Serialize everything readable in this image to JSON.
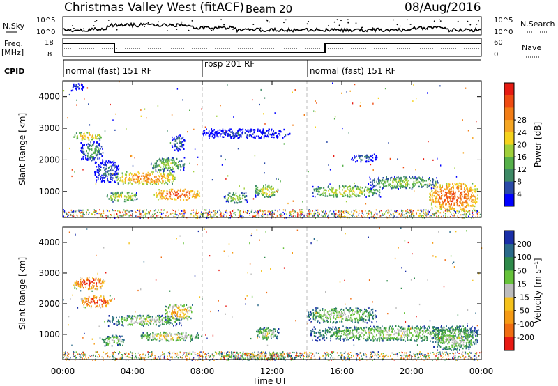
{
  "title": {
    "left": "Christmas Valley West (fitACF)",
    "beam": "Beam 20",
    "date": "08/Aug/2016"
  },
  "header": {
    "nsky_label": "N.Sky",
    "nsky_ticks": [
      "10^5",
      "10^0"
    ],
    "nsearch_label": "N.Search",
    "nsearch_ticks": [
      "10^5",
      "10^0"
    ],
    "freq_label": "Freq.",
    "freq_unit": "[MHz]",
    "freq_ticks": [
      "18",
      "8"
    ],
    "nave_label": "Nave",
    "nave_ticks": [
      "60",
      "0"
    ],
    "cpid_label": "CPID"
  },
  "cpid_segments": [
    {
      "label": "normal (fast) 151 RF",
      "start_h": 0
    },
    {
      "label": "rbsp 201 RF",
      "start_h": 8
    },
    {
      "label": "normal (fast) 151 RF",
      "start_h": 14
    }
  ],
  "chart_data": [
    {
      "type": "heatmap",
      "name": "power",
      "ylabel": "Slant Range [km]",
      "xlim_h": [
        0,
        24
      ],
      "ylim": [
        180,
        4500
      ],
      "yticks": [
        1000,
        2000,
        3000,
        4000
      ],
      "colorbar": {
        "label": "Power [dB]",
        "ticks": [
          "4",
          "8",
          "12",
          "16",
          "20",
          "24",
          "28"
        ],
        "colors": [
          "#0000ff",
          "#2a4aa8",
          "#3e8a66",
          "#56b04a",
          "#9fcf3a",
          "#f5d21c",
          "#f5a623",
          "#f27d16",
          "#ef4b12",
          "#e61b12"
        ]
      },
      "features": [
        {
          "t0": 0.4,
          "t1": 1.2,
          "r0": 4200,
          "r1": 4450,
          "level": 1
        },
        {
          "t0": 0.6,
          "t1": 2.2,
          "r0": 2650,
          "r1": 2900,
          "level": 6
        },
        {
          "t0": 1.0,
          "t1": 2.3,
          "r0": 2000,
          "r1": 2600,
          "level": 3
        },
        {
          "t0": 1.8,
          "t1": 3.2,
          "r0": 1300,
          "r1": 2000,
          "level": 2
        },
        {
          "t0": 2.5,
          "t1": 4.3,
          "r0": 700,
          "r1": 1000,
          "level": 5
        },
        {
          "t0": 3.0,
          "t1": 6.5,
          "r0": 1250,
          "r1": 1650,
          "level": 7
        },
        {
          "t0": 5.0,
          "t1": 7.0,
          "r0": 1650,
          "r1": 2100,
          "level": 4
        },
        {
          "t0": 5.2,
          "t1": 7.9,
          "r0": 750,
          "r1": 1100,
          "level": 8
        },
        {
          "t0": 6.2,
          "t1": 7.0,
          "r0": 2300,
          "r1": 2800,
          "level": 2
        },
        {
          "t0": 8.0,
          "t1": 13.0,
          "r0": 2700,
          "r1": 3000,
          "level": 1
        },
        {
          "t0": 9.2,
          "t1": 10.6,
          "r0": 650,
          "r1": 1000,
          "level": 4
        },
        {
          "t0": 11.0,
          "t1": 12.4,
          "r0": 850,
          "r1": 1250,
          "level": 5
        },
        {
          "t0": 14.3,
          "t1": 18.2,
          "r0": 850,
          "r1": 1200,
          "level": 5
        },
        {
          "t0": 16.5,
          "t1": 18.0,
          "r0": 1950,
          "r1": 2200,
          "level": 2
        },
        {
          "t0": 17.5,
          "t1": 21.5,
          "r0": 1100,
          "r1": 1500,
          "level": 4
        },
        {
          "t0": 21.0,
          "t1": 23.8,
          "r0": 400,
          "r1": 1300,
          "level": 8
        }
      ]
    },
    {
      "type": "heatmap",
      "name": "velocity",
      "ylabel": "Slant Range [km]",
      "xlabel": "Time UT",
      "xticks": [
        "00:00",
        "04:00",
        "08:00",
        "12:00",
        "16:00",
        "20:00",
        "00:00"
      ],
      "xlim_h": [
        0,
        24
      ],
      "ylim": [
        180,
        4500
      ],
      "yticks": [
        1000,
        2000,
        3000,
        4000
      ],
      "colorbar": {
        "label": "Velocity [m s⁻¹]",
        "ticks": [
          "200",
          "100",
          "50",
          "15",
          "-15",
          "-50",
          "-100",
          "-200"
        ],
        "colors": [
          "#1a2fa8",
          "#2a6a8a",
          "#2e8a4a",
          "#66c23a",
          "#bdbdbd",
          "#f5c21c",
          "#f59a14",
          "#f06d12",
          "#e81a14"
        ]
      },
      "features": [
        {
          "t0": 0.6,
          "t1": 2.4,
          "r0": 2500,
          "r1": 2900,
          "level": 8
        },
        {
          "t0": 1.0,
          "t1": 2.8,
          "r0": 1900,
          "r1": 2300,
          "level": 8
        },
        {
          "t0": 2.5,
          "t1": 6.8,
          "r0": 1300,
          "r1": 1650,
          "level": 4
        },
        {
          "t0": 2.2,
          "t1": 3.5,
          "r0": 650,
          "r1": 1000,
          "level": 4
        },
        {
          "t0": 5.8,
          "t1": 7.4,
          "r0": 1500,
          "r1": 2000,
          "level": 6
        },
        {
          "t0": 4.4,
          "t1": 7.8,
          "r0": 800,
          "r1": 1100,
          "level": 5
        },
        {
          "t0": 9.0,
          "t1": 13.5,
          "r0": 200,
          "r1": 450,
          "level": 5
        },
        {
          "t0": 11.0,
          "t1": 12.4,
          "r0": 850,
          "r1": 1250,
          "level": 4
        },
        {
          "t0": 14.2,
          "t1": 23.8,
          "r0": 800,
          "r1": 1300,
          "level": 4
        },
        {
          "t0": 14.0,
          "t1": 18.0,
          "r0": 1400,
          "r1": 1900,
          "level": 4
        },
        {
          "t0": 21.2,
          "t1": 23.8,
          "r0": 500,
          "r1": 1300,
          "level": 4
        }
      ]
    }
  ]
}
